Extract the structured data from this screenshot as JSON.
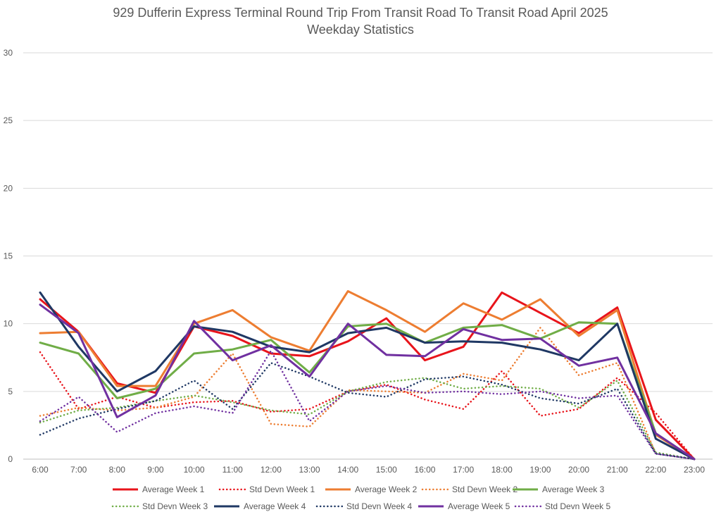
{
  "chart_data": {
    "type": "line",
    "title": "929 Dufferin Express Terminal Round Trip From Transit Road To Transit Road April 2025",
    "subtitle": "Weekday Statistics",
    "xlabel": "",
    "ylabel": "",
    "ylim": [
      0,
      30
    ],
    "yticks": [
      "0",
      "5",
      "10",
      "15",
      "20",
      "25",
      "30"
    ],
    "grid": true,
    "legend": "bottom",
    "categories": [
      "6:00",
      "7:00",
      "8:00",
      "9:00",
      "10:00",
      "11:00",
      "12:00",
      "13:00",
      "14:00",
      "15:00",
      "16:00",
      "17:00",
      "18:00",
      "19:00",
      "20:00",
      "21:00",
      "22:00",
      "23:00"
    ],
    "series": [
      {
        "name": "Average Week 1",
        "color": "#e8141b",
        "dash": "solid",
        "values": [
          11.8,
          9.4,
          5.6,
          4.9,
          9.8,
          9.1,
          7.8,
          7.6,
          8.7,
          10.4,
          7.3,
          8.3,
          12.3,
          10.8,
          9.3,
          11.2,
          2.9,
          0
        ]
      },
      {
        "name": "Std Devn Week 1",
        "color": "#e8141b",
        "dash": "dotted",
        "values": [
          7.9,
          3.7,
          4.6,
          3.8,
          4.2,
          4.3,
          3.5,
          3.7,
          5.0,
          5.5,
          4.4,
          3.7,
          6.5,
          3.2,
          3.7,
          6.0,
          3.4,
          0
        ]
      },
      {
        "name": "Average Week 2",
        "color": "#ed7d31",
        "dash": "solid",
        "values": [
          9.3,
          9.4,
          5.4,
          5.4,
          10.0,
          11.0,
          9.0,
          8.0,
          12.4,
          11.0,
          9.4,
          11.5,
          10.3,
          11.8,
          9.1,
          11.0,
          1.8,
          0
        ]
      },
      {
        "name": "Std Devn Week 2",
        "color": "#ed7d31",
        "dash": "dotted",
        "values": [
          3.2,
          3.8,
          3.6,
          3.8,
          4.6,
          7.8,
          2.6,
          2.4,
          5.1,
          5.0,
          4.9,
          6.3,
          5.8,
          9.7,
          6.2,
          7.1,
          0.4,
          0
        ]
      },
      {
        "name": "Average Week 3",
        "color": "#70ad47",
        "dash": "solid",
        "values": [
          8.6,
          7.8,
          4.5,
          5.2,
          7.8,
          8.1,
          8.8,
          6.4,
          9.8,
          10.0,
          8.6,
          9.7,
          9.9,
          8.9,
          10.1,
          10.0,
          1.9,
          0
        ]
      },
      {
        "name": "Std Devn Week 3",
        "color": "#70ad47",
        "dash": "dotted",
        "values": [
          2.7,
          3.6,
          3.8,
          4.3,
          4.7,
          4.2,
          3.6,
          3.3,
          5.0,
          5.7,
          6.0,
          5.2,
          5.4,
          5.2,
          3.8,
          5.8,
          0.5,
          0
        ]
      },
      {
        "name": "Average Week 4",
        "color": "#1f3864",
        "dash": "solid",
        "values": [
          12.3,
          8.3,
          5.0,
          6.5,
          9.8,
          9.4,
          8.3,
          7.9,
          9.3,
          9.7,
          8.6,
          8.7,
          8.6,
          8.1,
          7.3,
          10.0,
          1.5,
          0
        ]
      },
      {
        "name": "Std Devn Week 4",
        "color": "#1f3864",
        "dash": "dotted",
        "values": [
          1.8,
          3.0,
          3.7,
          4.3,
          5.8,
          3.7,
          7.1,
          6.1,
          4.9,
          4.6,
          5.9,
          6.1,
          5.5,
          4.5,
          4.1,
          5.2,
          0.4,
          0
        ]
      },
      {
        "name": "Average Week 5",
        "color": "#7030a0",
        "dash": "solid",
        "values": [
          11.4,
          9.3,
          3.1,
          4.7,
          10.2,
          7.3,
          8.4,
          6.1,
          10.0,
          7.7,
          7.6,
          9.6,
          8.8,
          8.9,
          6.9,
          7.5,
          1.9,
          0
        ]
      },
      {
        "name": "Std Devn Week 5",
        "color": "#7030a0",
        "dash": "dotted",
        "values": [
          2.8,
          4.6,
          2.0,
          3.4,
          3.9,
          3.4,
          8.0,
          2.8,
          5.0,
          5.4,
          4.9,
          5.0,
          4.8,
          5.0,
          4.5,
          4.7,
          0.4,
          0
        ]
      }
    ]
  }
}
